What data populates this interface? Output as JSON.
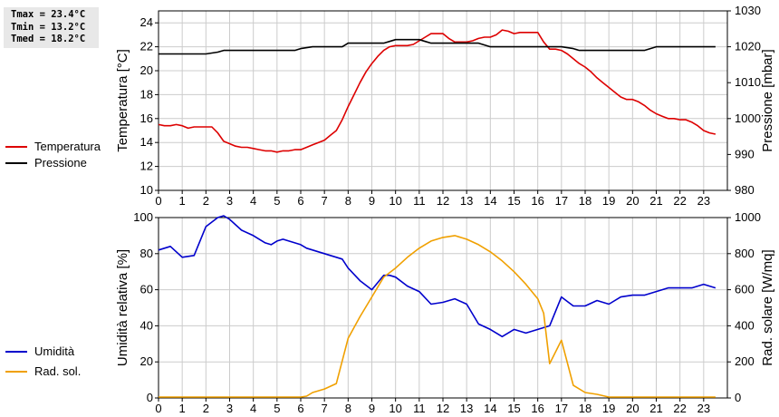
{
  "stats": {
    "tmax": "Tmax = 23.4°C",
    "tmin": "Tmin = 13.2°C",
    "tmed": "Tmed = 18.2°C"
  },
  "colors": {
    "temperature": "#dd0000",
    "pressure": "#000000",
    "humidity": "#0000cc",
    "radiation": "#f0a000",
    "grid": "#cccccc"
  },
  "chart_data": [
    {
      "type": "line",
      "xlim": [
        0,
        24
      ],
      "xticks": [
        "0",
        "1",
        "2",
        "3",
        "4",
        "5",
        "6",
        "7",
        "8",
        "9",
        "10",
        "11",
        "12",
        "13",
        "14",
        "15",
        "16",
        "17",
        "18",
        "19",
        "20",
        "21",
        "22",
        "23"
      ],
      "ylabel": "Temperatura [°C]",
      "ylim": [
        10,
        25
      ],
      "yticks": [
        10,
        12,
        14,
        16,
        18,
        20,
        22,
        24
      ],
      "y2label": "Pressione [mbar]",
      "y2lim": [
        980,
        1030
      ],
      "y2ticks": [
        980,
        990,
        1000,
        1010,
        1020,
        1030
      ],
      "grid": true,
      "legend_position": "left",
      "series": [
        {
          "name": "Temperatura",
          "axis": "left",
          "x": [
            0,
            0.25,
            0.5,
            0.75,
            1,
            1.25,
            1.5,
            1.75,
            2,
            2.25,
            2.5,
            2.75,
            3,
            3.25,
            3.5,
            3.75,
            4,
            4.25,
            4.5,
            4.75,
            5,
            5.25,
            5.5,
            5.75,
            6,
            6.25,
            6.5,
            6.75,
            7,
            7.25,
            7.5,
            7.75,
            8,
            8.25,
            8.5,
            8.75,
            9,
            9.25,
            9.5,
            9.75,
            10,
            10.25,
            10.5,
            10.75,
            11,
            11.25,
            11.5,
            11.75,
            12,
            12.25,
            12.5,
            12.75,
            13,
            13.25,
            13.5,
            13.75,
            14,
            14.25,
            14.5,
            14.75,
            15,
            15.25,
            15.5,
            15.75,
            16,
            16.25,
            16.5,
            16.75,
            17,
            17.25,
            17.5,
            17.75,
            18,
            18.25,
            18.5,
            18.75,
            19,
            19.25,
            19.5,
            19.75,
            20,
            20.25,
            20.5,
            20.75,
            21,
            21.25,
            21.5,
            21.75,
            22,
            22.25,
            22.5,
            22.75,
            23,
            23.25,
            23.5
          ],
          "values": [
            15.5,
            15.4,
            15.4,
            15.5,
            15.4,
            15.2,
            15.3,
            15.3,
            15.3,
            15.3,
            14.8,
            14.1,
            13.9,
            13.7,
            13.6,
            13.6,
            13.5,
            13.4,
            13.3,
            13.3,
            13.2,
            13.3,
            13.3,
            13.4,
            13.4,
            13.6,
            13.8,
            14.0,
            14.2,
            14.6,
            15.0,
            15.9,
            17.0,
            18.0,
            19.0,
            19.9,
            20.6,
            21.2,
            21.7,
            22.0,
            22.1,
            22.1,
            22.1,
            22.2,
            22.5,
            22.8,
            23.1,
            23.1,
            23.1,
            22.7,
            22.4,
            22.4,
            22.4,
            22.5,
            22.7,
            22.8,
            22.8,
            23.0,
            23.4,
            23.3,
            23.1,
            23.2,
            23.2,
            23.2,
            23.2,
            22.4,
            21.8,
            21.8,
            21.7,
            21.4,
            21.0,
            20.6,
            20.3,
            19.9,
            19.4,
            19.0,
            18.6,
            18.2,
            17.8,
            17.6,
            17.6,
            17.4,
            17.1,
            16.7,
            16.4,
            16.2,
            16.0,
            16.0,
            15.9,
            15.9,
            15.7,
            15.4,
            15.0,
            14.8,
            14.7
          ]
        },
        {
          "name": "Pressione",
          "axis": "right",
          "x": [
            0,
            1,
            2,
            2.5,
            2.75,
            3,
            4,
            5,
            5.75,
            6,
            6.5,
            7,
            7.5,
            7.75,
            8,
            8.5,
            9,
            9.5,
            9.75,
            10,
            10.5,
            11,
            11.25,
            11.5,
            12,
            12.5,
            13,
            13.5,
            13.75,
            14,
            14.5,
            15,
            15.5,
            16,
            16.5,
            17,
            17.5,
            17.75,
            18,
            18.5,
            19,
            19.5,
            20,
            20.5,
            20.75,
            21,
            21.5,
            22,
            22.5,
            23,
            23.5
          ],
          "values": [
            1018,
            1018,
            1018,
            1018.5,
            1019,
            1019,
            1019,
            1019,
            1019,
            1019.5,
            1020,
            1020,
            1020,
            1020,
            1021,
            1021,
            1021,
            1021,
            1021.5,
            1022,
            1022,
            1022,
            1021.5,
            1021,
            1021,
            1021,
            1021,
            1021,
            1020.5,
            1020,
            1020,
            1020,
            1020,
            1020,
            1020,
            1020,
            1019.5,
            1019,
            1019,
            1019,
            1019,
            1019,
            1019,
            1019,
            1019.5,
            1020,
            1020,
            1020,
            1020,
            1020,
            1020
          ]
        }
      ]
    },
    {
      "type": "line",
      "xlim": [
        0,
        24
      ],
      "xticks": [
        "0",
        "1",
        "2",
        "3",
        "4",
        "5",
        "6",
        "7",
        "8",
        "9",
        "10",
        "11",
        "12",
        "13",
        "14",
        "15",
        "16",
        "17",
        "18",
        "19",
        "20",
        "21",
        "22",
        "23"
      ],
      "ylabel": "Umidità relativa [%]",
      "ylim": [
        0,
        100
      ],
      "yticks": [
        0,
        20,
        40,
        60,
        80,
        100
      ],
      "y2label": "Rad. solare [W/mq]",
      "y2lim": [
        0,
        1000
      ],
      "y2ticks": [
        0,
        200,
        400,
        600,
        800,
        1000
      ],
      "grid": true,
      "legend_position": "left",
      "series": [
        {
          "name": "Umidità",
          "axis": "left",
          "x": [
            0,
            0.5,
            1,
            1.5,
            2,
            2.5,
            2.75,
            3,
            3.5,
            4,
            4.25,
            4.5,
            4.75,
            5,
            5.25,
            5.5,
            5.75,
            6,
            6.25,
            6.5,
            6.75,
            7,
            7.25,
            7.5,
            7.75,
            8,
            8.5,
            9,
            9.5,
            9.75,
            10,
            10.5,
            11,
            11.5,
            12,
            12.5,
            13,
            13.5,
            14,
            14.5,
            15,
            15.5,
            16,
            16.5,
            17,
            17.5,
            18,
            18.5,
            19,
            19.5,
            20,
            20.5,
            21,
            21.5,
            22,
            22.5,
            23,
            23.5
          ],
          "values": [
            82,
            84,
            78,
            79,
            95,
            100,
            101,
            99,
            93,
            90,
            88,
            86,
            85,
            87,
            88,
            87,
            86,
            85,
            83,
            82,
            81,
            80,
            79,
            78,
            77,
            72,
            65,
            60,
            68,
            68,
            67,
            62,
            59,
            52,
            53,
            55,
            52,
            41,
            38,
            34,
            38,
            36,
            38,
            40,
            56,
            51,
            51,
            54,
            52,
            56,
            57,
            57,
            59,
            61,
            61,
            61,
            63,
            61
          ]
        },
        {
          "name": "Rad. sol.",
          "axis": "right",
          "x": [
            0,
            1,
            2,
            3,
            4,
            5,
            6,
            6.25,
            6.5,
            7,
            7.5,
            8,
            8.5,
            9,
            9.5,
            10,
            10.5,
            11,
            11.5,
            12,
            12.5,
            13,
            13.5,
            14,
            14.5,
            15,
            15.5,
            16,
            16.25,
            16.5,
            17,
            17.5,
            18,
            18.5,
            19,
            20,
            21,
            22,
            23,
            23.5
          ],
          "values": [
            5,
            5,
            5,
            5,
            5,
            5,
            5,
            10,
            30,
            50,
            80,
            330,
            450,
            560,
            670,
            720,
            780,
            830,
            870,
            890,
            900,
            880,
            850,
            810,
            760,
            700,
            630,
            550,
            470,
            190,
            320,
            70,
            30,
            20,
            5,
            5,
            5,
            5,
            5,
            5
          ]
        }
      ]
    }
  ]
}
